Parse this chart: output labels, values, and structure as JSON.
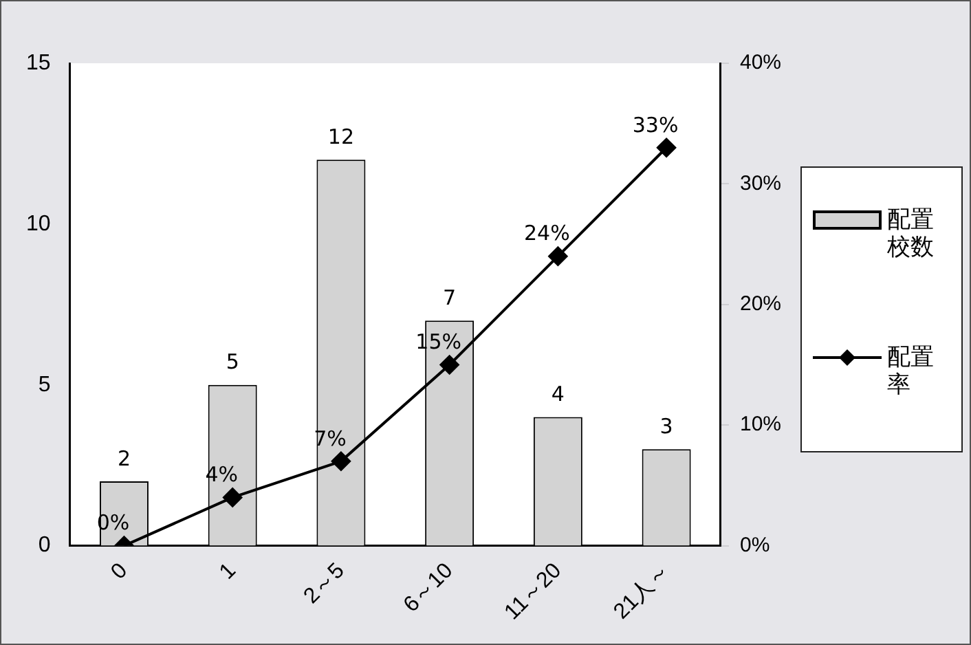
{
  "chart_data": {
    "type": "bar",
    "categories": [
      "0",
      "1",
      "2～5",
      "6～10",
      "11～20",
      "21人～"
    ],
    "series": [
      {
        "name": "配置校数",
        "color": "#d3d3d3",
        "values": [
          2,
          5,
          12,
          7,
          4,
          3
        ]
      },
      {
        "name": "配置率",
        "type": "line",
        "axis": "y2",
        "color": "#000000",
        "marker": "diamond",
        "values": [
          0,
          4,
          7,
          15,
          24,
          33
        ],
        "value_labels": [
          "0%",
          "4%",
          "7%",
          "15%",
          "24%",
          "33%"
        ]
      }
    ],
    "data_labels": true,
    "ylim": [
      0,
      15
    ],
    "yticks": [
      0,
      5,
      10,
      15
    ],
    "y2lim": [
      0,
      40
    ],
    "y2ticks": [
      {
        "value": 0,
        "label": "0%"
      },
      {
        "value": 10,
        "label": "10%"
      },
      {
        "value": 20,
        "label": "20%"
      },
      {
        "value": 30,
        "label": "30%"
      },
      {
        "value": 40,
        "label": "40%"
      }
    ],
    "grid": false,
    "legend": "right"
  }
}
